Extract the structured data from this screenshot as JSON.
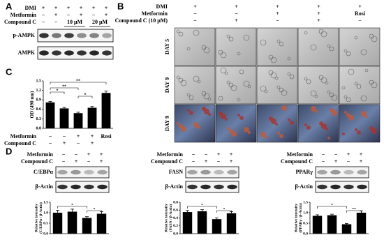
{
  "panel_a": {
    "label": "A",
    "rows": [
      {
        "name": "DMI",
        "cells": [
          "+",
          "+",
          "+",
          "+",
          "+",
          "+"
        ]
      },
      {
        "name": "Metformin",
        "cells": [
          "−",
          "+",
          "−",
          "+",
          "−",
          "+"
        ]
      },
      {
        "name": "Compound C",
        "cells": [
          "−",
          "−",
          "10 μM",
          "20 μM"
        ]
      }
    ],
    "blots": [
      "p-AMPK",
      "AMPK"
    ]
  },
  "panel_b": {
    "label": "B",
    "rows": [
      {
        "name": "DMI",
        "cells": [
          "+",
          "+",
          "+",
          "+",
          "+"
        ]
      },
      {
        "name": "Metformin",
        "cells": [
          "−",
          "−",
          "+",
          "+",
          "Rosi"
        ]
      },
      {
        "name": "Compound C (10 μM)",
        "cells": [
          "−",
          "+",
          "−",
          "+",
          "−"
        ]
      }
    ],
    "row_labels": [
      "DAY 5",
      "DAY 9",
      "DAY 9"
    ]
  },
  "panel_c": {
    "label": "C",
    "chart": {
      "type": "bar",
      "ylabel": "OD (490 nm)",
      "values": [
        0.82,
        0.63,
        0.48,
        0.65,
        1.12
      ],
      "errors": [
        0.03,
        0.03,
        0.03,
        0.04,
        0.06
      ],
      "ylim": [
        0,
        1.5
      ],
      "yticks": [
        {
          "value": 0,
          "label": "0.0"
        },
        {
          "value": 0.3,
          "label": "0.3"
        },
        {
          "value": 0.6,
          "label": "0.6"
        },
        {
          "value": 0.9,
          "label": "0.9"
        },
        {
          "value": 1.2,
          "label": "1.2"
        },
        {
          "value": 1.5,
          "label": "1.5"
        }
      ],
      "significance": [
        "*",
        "**",
        "*",
        "**"
      ]
    },
    "rows": [
      {
        "name": "Metformin",
        "cells": [
          "−",
          "−",
          "+",
          "+",
          "Rosi"
        ]
      },
      {
        "name": "Compound C",
        "cells": [
          "−",
          "+",
          "−",
          "+",
          null
        ]
      }
    ]
  },
  "panel_d": {
    "label": "D",
    "items": [
      {
        "rows": [
          {
            "name": "Metformin",
            "cells": [
              "−",
              "−",
              "+",
              "+"
            ]
          },
          {
            "name": "Compound C",
            "cells": [
              "−",
              "+",
              "−",
              "+"
            ]
          }
        ],
        "blot": "C/EBPα",
        "loading": "β-Actin",
        "chart": {
          "type": "bar",
          "ylabel": [
            "Relative intensity",
            "(C/EBPα / β-Actin)"
          ],
          "values": [
            1.0,
            1.05,
            0.75,
            0.95
          ],
          "errors": [
            0.12,
            0.12,
            0.06,
            0.1
          ],
          "ylim": [
            0,
            1.5
          ],
          "yticks": [
            {
              "value": 0,
              "label": "0.0"
            },
            {
              "value": 0.5,
              "label": "0.5"
            },
            {
              "value": 1,
              "label": "1.0"
            },
            {
              "value": 1.5,
              "label": "1.5"
            }
          ],
          "significance": [
            "*",
            "*"
          ]
        }
      },
      {
        "rows": [
          {
            "name": "Metformin",
            "cells": [
              "−",
              "−",
              "+",
              "+"
            ]
          },
          {
            "name": "Compound C",
            "cells": [
              "−",
              "+",
              "−",
              "+"
            ]
          }
        ],
        "blot": "FASN",
        "loading": "β-Actin",
        "chart": {
          "type": "bar",
          "ylabel": [
            "Relative intensity",
            "(FASN / β-Actin)"
          ],
          "values": [
            0.55,
            0.57,
            0.37,
            0.52
          ],
          "errors": [
            0.04,
            0.04,
            0.03,
            0.04
          ],
          "ylim": [
            0,
            0.8
          ],
          "yticks": [
            {
              "value": 0,
              "label": "0.0"
            },
            {
              "value": 0.2,
              "label": "0.2"
            },
            {
              "value": 0.4,
              "label": "0.4"
            },
            {
              "value": 0.6,
              "label": "0.6"
            },
            {
              "value": 0.8,
              "label": "0.8"
            }
          ],
          "significance": [
            "*",
            "*"
          ]
        }
      },
      {
        "rows": [
          {
            "name": "Metformin",
            "cells": [
              "−",
              "−",
              "+",
              "+"
            ]
          },
          {
            "name": "Compound C",
            "cells": [
              "−",
              "+",
              "−",
              "+"
            ]
          }
        ],
        "blot": "PPARγ",
        "loading": "β-Actin",
        "chart": {
          "type": "bar",
          "ylabel": [
            "Relative intensity",
            "(PPARγ / β-Actin)"
          ],
          "values": [
            0.85,
            0.88,
            0.45,
            1.0
          ],
          "errors": [
            0.05,
            0.05,
            0.03,
            0.08
          ],
          "ylim": [
            0,
            1.5
          ],
          "yticks": [
            {
              "value": 0,
              "label": "0.0"
            },
            {
              "value": 0.5,
              "label": "0.5"
            },
            {
              "value": 1,
              "label": "1.0"
            },
            {
              "value": 1.5,
              "label": "1.5"
            }
          ],
          "significance": [
            "*",
            "**"
          ]
        }
      }
    ]
  }
}
